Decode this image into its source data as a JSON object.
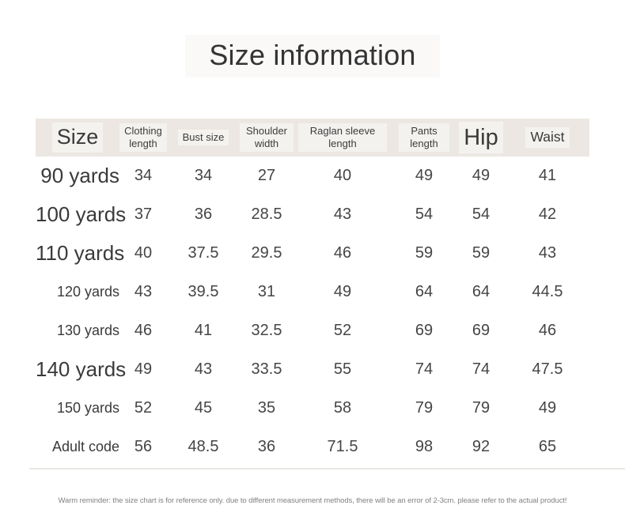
{
  "title": "Size information",
  "table": {
    "headers": [
      "Size",
      "Clothing length",
      "Bust size",
      "Shoulder width",
      "Raglan sleeve length",
      "Pants length",
      "Hip",
      "Waist"
    ],
    "rows": [
      {
        "label": "90 yards",
        "values": [
          "34",
          "34",
          "27",
          "40",
          "49",
          "49",
          "41"
        ]
      },
      {
        "label": "100 yards",
        "values": [
          "37",
          "36",
          "28.5",
          "43",
          "54",
          "54",
          "42"
        ]
      },
      {
        "label": "110 yards",
        "values": [
          "40",
          "37.5",
          "29.5",
          "46",
          "59",
          "59",
          "43"
        ]
      },
      {
        "label": "120 yards",
        "values": [
          "43",
          "39.5",
          "31",
          "49",
          "64",
          "64",
          "44.5"
        ]
      },
      {
        "label": "130 yards",
        "values": [
          "46",
          "41",
          "32.5",
          "52",
          "69",
          "69",
          "46"
        ]
      },
      {
        "label": "140 yards",
        "values": [
          "49",
          "43",
          "33.5",
          "55",
          "74",
          "74",
          "47.5"
        ]
      },
      {
        "label": "150 yards",
        "values": [
          "52",
          "45",
          "35",
          "58",
          "79",
          "79",
          "49"
        ]
      },
      {
        "label": "Adult code",
        "values": [
          "56",
          "48.5",
          "36",
          "71.5",
          "98",
          "92",
          "65"
        ]
      }
    ]
  },
  "footer": {
    "reminder": "Warm reminder: the size chart is for reference only. due to different measurement methods, there will be an error of 2-3cm. please refer to the actual product!"
  },
  "colors": {
    "header_band": "#ece7e2",
    "title_patch": "#faf9f8",
    "table_text": "#3e3e3e",
    "reminder_text": "#828282"
  }
}
